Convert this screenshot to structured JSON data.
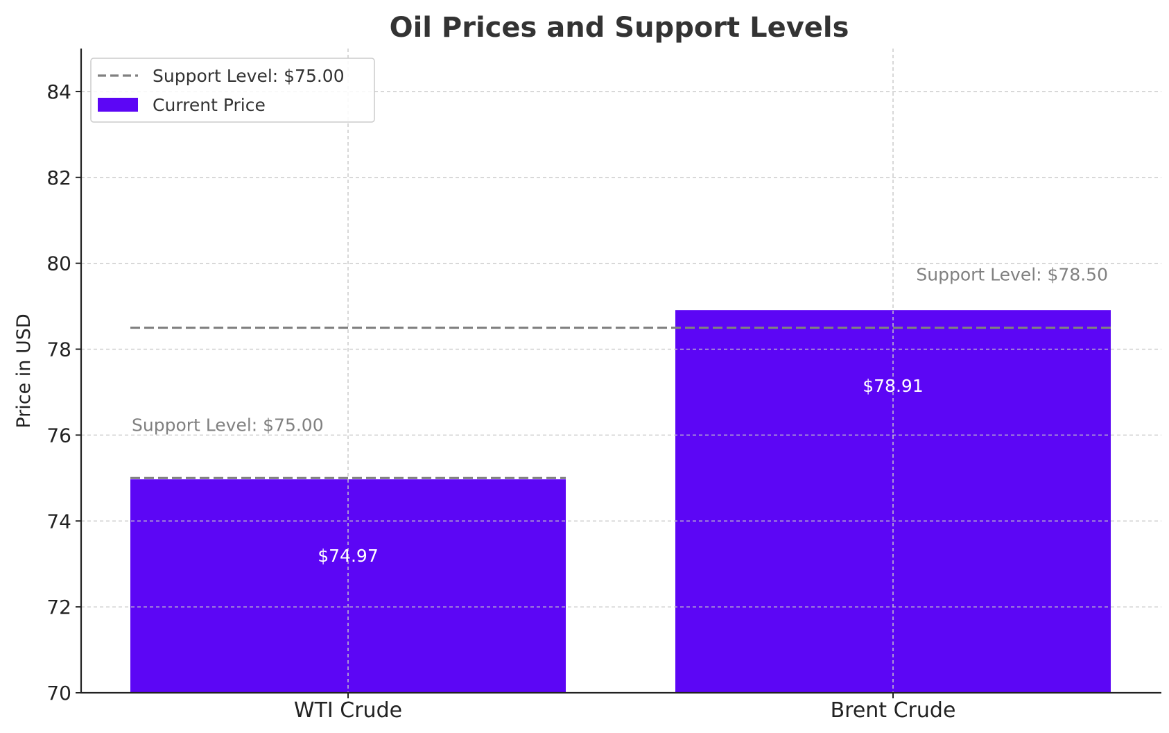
{
  "chart_data": {
    "type": "bar",
    "title": "Oil Prices and Support Levels",
    "xlabel": "",
    "ylabel": "Price in USD",
    "categories": [
      "WTI Crude",
      "Brent Crude"
    ],
    "series": [
      {
        "name": "Current Price",
        "values": [
          74.97,
          78.91
        ],
        "value_labels": [
          "$74.97",
          "$78.91"
        ],
        "color": "#5c06f5"
      }
    ],
    "support_levels": {
      "values": [
        75.0,
        78.5
      ],
      "labels": [
        "Support Level: $75.00",
        "Support Level: $78.50"
      ],
      "color": "#808080",
      "style": "dashed"
    },
    "ylim": [
      70,
      85
    ],
    "yticks": [
      70,
      72,
      74,
      76,
      78,
      80,
      82,
      84
    ],
    "grid": true,
    "legend": {
      "position": "top-left",
      "entries": [
        {
          "label": "Support Level: $75.00",
          "kind": "dashed-line",
          "color": "#808080"
        },
        {
          "label": "Current Price",
          "kind": "bar",
          "color": "#5c06f5"
        }
      ]
    }
  }
}
